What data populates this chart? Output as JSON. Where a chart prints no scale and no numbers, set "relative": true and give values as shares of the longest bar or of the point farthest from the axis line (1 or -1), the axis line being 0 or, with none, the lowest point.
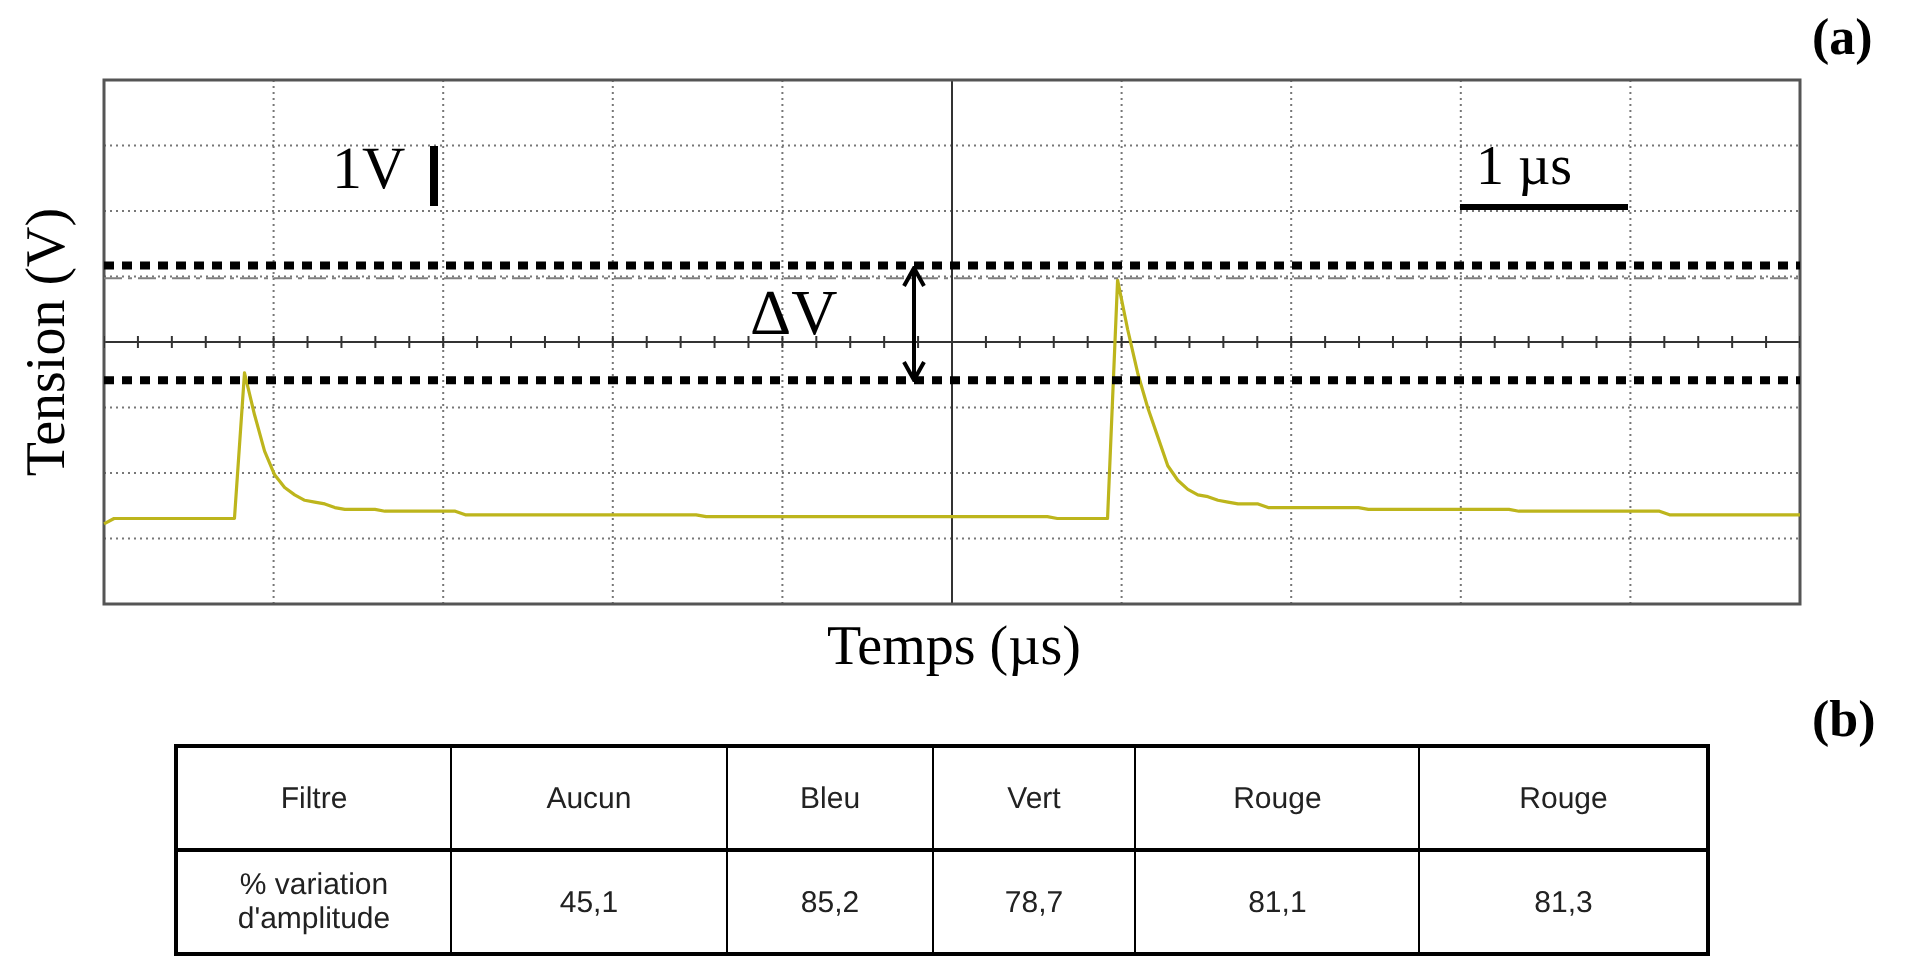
{
  "chart_data": [
    {
      "type": "line",
      "title": "(a)",
      "xlabel": "Temps (µs)",
      "ylabel": "Tension (V)",
      "relative": true,
      "grid": true,
      "annotations": [
        "1V",
        "1 µs",
        "ΔV"
      ],
      "ref_lines": [
        {
          "axis": "y",
          "value": 0.42,
          "color": "#000000",
          "line_style": "dotted"
        },
        {
          "axis": "y",
          "value": -0.21,
          "color": "#000000",
          "line_style": "dotted"
        },
        {
          "axis": "y",
          "value": 0.35,
          "color": "#808080",
          "line_style": "dashed"
        }
      ],
      "categories": [
        null,
        null,
        null,
        null,
        null,
        null,
        null,
        null,
        null,
        null,
        null,
        null,
        null,
        null,
        null,
        null,
        null,
        null,
        null,
        null,
        null,
        null,
        null,
        null,
        null,
        null,
        null,
        null,
        null,
        null,
        null,
        null,
        null,
        null,
        null,
        null,
        null,
        null,
        null,
        null,
        null,
        null,
        null,
        null,
        null,
        null,
        null,
        null,
        null,
        null,
        null,
        null,
        null,
        null,
        null,
        null,
        null,
        null,
        null,
        null,
        null,
        null,
        null,
        null,
        null,
        null,
        null,
        null,
        null,
        null,
        null,
        null,
        null,
        null,
        null,
        null,
        null,
        null,
        null,
        null,
        null,
        null,
        null,
        null,
        null,
        null,
        null,
        null,
        null,
        null,
        null,
        null,
        null,
        null,
        null,
        null,
        null,
        null,
        null,
        null,
        null,
        null,
        null,
        null,
        null,
        null,
        null,
        null,
        null,
        null,
        null,
        null,
        null,
        null,
        null,
        null,
        null,
        null,
        null,
        null,
        null,
        null,
        null,
        null,
        null,
        null,
        null,
        null,
        null,
        null,
        null,
        null,
        null,
        null,
        null,
        null,
        null,
        null,
        null,
        null,
        null,
        null,
        null,
        null,
        null,
        null,
        null,
        null,
        null,
        null,
        null,
        null,
        null,
        null,
        null,
        null,
        null,
        null,
        null,
        null,
        null,
        null,
        null,
        null,
        null,
        null,
        null,
        null,
        null,
        null
      ],
      "series": [
        {
          "color": "#bdb51c",
          "values": [
            -1,
            -0.97,
            -0.97,
            -0.97,
            -0.97,
            -0.97,
            -0.97,
            -0.97,
            -0.97,
            -0.97,
            -0.97,
            -0.97,
            -0.97,
            -0.97,
            -0.17,
            -0.4,
            -0.6,
            -0.73,
            -0.8,
            -0.84,
            -0.87,
            -0.88,
            -0.89,
            -0.91,
            -0.92,
            -0.92,
            -0.92,
            -0.92,
            -0.93,
            -0.93,
            -0.93,
            -0.93,
            -0.93,
            -0.93,
            -0.93,
            -0.93,
            -0.95,
            -0.95,
            -0.95,
            -0.95,
            -0.95,
            -0.95,
            -0.95,
            -0.95,
            -0.95,
            -0.95,
            -0.95,
            -0.95,
            -0.95,
            -0.95,
            -0.95,
            -0.95,
            -0.95,
            -0.95,
            -0.95,
            -0.95,
            -0.95,
            -0.95,
            -0.95,
            -0.95,
            -0.96,
            -0.96,
            -0.96,
            -0.96,
            -0.96,
            -0.96,
            -0.96,
            -0.96,
            -0.96,
            -0.96,
            -0.96,
            -0.96,
            -0.96,
            -0.96,
            -0.96,
            -0.96,
            -0.96,
            -0.96,
            -0.96,
            -0.96,
            -0.96,
            -0.96,
            -0.96,
            -0.96,
            -0.96,
            -0.96,
            -0.96,
            -0.96,
            -0.96,
            -0.96,
            -0.96,
            -0.96,
            -0.96,
            -0.96,
            -0.96,
            -0.97,
            -0.97,
            -0.97,
            -0.97,
            -0.97,
            -0.97,
            0.34,
            0.07,
            -0.17,
            -0.36,
            -0.52,
            -0.68,
            -0.76,
            -0.81,
            -0.84,
            -0.85,
            -0.87,
            -0.88,
            -0.89,
            -0.89,
            -0.89,
            -0.91,
            -0.91,
            -0.91,
            -0.91,
            -0.91,
            -0.91,
            -0.91,
            -0.91,
            -0.91,
            -0.91,
            -0.92,
            -0.92,
            -0.92,
            -0.92,
            -0.92,
            -0.92,
            -0.92,
            -0.92,
            -0.92,
            -0.92,
            -0.92,
            -0.92,
            -0.92,
            -0.92,
            -0.92,
            -0.93,
            -0.93,
            -0.93,
            -0.93,
            -0.93,
            -0.93,
            -0.93,
            -0.93,
            -0.93,
            -0.93,
            -0.93,
            -0.93,
            -0.93,
            -0.93,
            -0.93,
            -0.95,
            -0.95,
            -0.95,
            -0.95,
            -0.95,
            -0.95,
            -0.95,
            -0.95,
            -0.95,
            -0.95,
            -0.95,
            -0.95,
            -0.95,
            -0.95
          ]
        }
      ]
    },
    {
      "type": "other",
      "title": "(b)",
      "xlabel": "Filtre",
      "ylabel": "% variation d'amplitude",
      "categories": [
        "Aucun",
        "Bleu",
        "Vert",
        "Rouge",
        "Rouge"
      ],
      "value_labels": [
        "45,1",
        "85,2",
        "78,7",
        "81,1",
        "81,3"
      ]
    }
  ]
}
